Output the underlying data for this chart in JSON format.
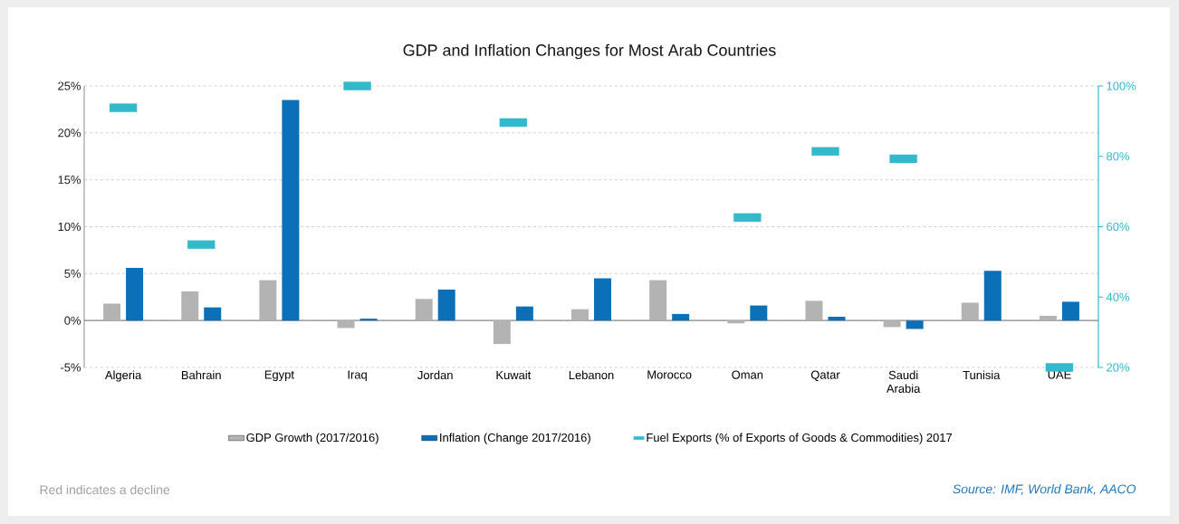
{
  "chart_data": {
    "type": "bar",
    "title": "GDP and Inflation Changes for Most Arab Countries",
    "categories": [
      "Algeria",
      "Bahrain",
      "Egypt",
      "Iraq",
      "Jordan",
      "Kuwait",
      "Lebanon",
      "Morocco",
      "Oman",
      "Qatar",
      "Saudi Arabia",
      "Tunisia",
      "UAE"
    ],
    "series": [
      {
        "name": "GDP Growth (2017/2016)",
        "color": "#b3b3b3",
        "values": [
          1.8,
          3.1,
          4.3,
          -0.8,
          2.3,
          -2.5,
          1.2,
          4.3,
          -0.3,
          2.1,
          -0.7,
          1.9,
          0.5
        ]
      },
      {
        "name": "Inflation (Change 2017/2016)",
        "color": "#0b70b8",
        "values": [
          5.6,
          1.4,
          23.5,
          0.2,
          3.3,
          1.5,
          4.5,
          0.7,
          1.6,
          0.4,
          -0.9,
          5.3,
          2.0
        ]
      },
      {
        "name": "Fuel Exports (% of Exports of Goods & Commodities) 2017",
        "type": "scatter",
        "axis": "y2",
        "color": "#33b8cc",
        "values": [
          93.8,
          54.9,
          null,
          100,
          null,
          89.6,
          null,
          null,
          62.6,
          81.4,
          79.3,
          null,
          20
        ]
      }
    ],
    "ylim": [
      -5,
      25
    ],
    "yticks": [
      {
        "value": -5,
        "label": "-5%"
      },
      {
        "value": 0,
        "label": "0%"
      },
      {
        "value": 5,
        "label": "5%"
      },
      {
        "value": 10,
        "label": "10%"
      },
      {
        "value": 15,
        "label": "15%"
      },
      {
        "value": 20,
        "label": "20%"
      },
      {
        "value": 25,
        "label": "25%"
      }
    ],
    "y2lim": [
      20,
      100
    ],
    "y2ticks": [
      {
        "value": 20,
        "label": "20%"
      },
      {
        "value": 40,
        "label": "40%"
      },
      {
        "value": 60,
        "label": "60%"
      },
      {
        "value": 80,
        "label": "80%"
      },
      {
        "value": 100,
        "label": "100%"
      }
    ],
    "grid": "y",
    "legend": "bottom",
    "annotations": [
      "Red indicates a decline",
      "Source: IMF, World Bank, AACO"
    ]
  }
}
